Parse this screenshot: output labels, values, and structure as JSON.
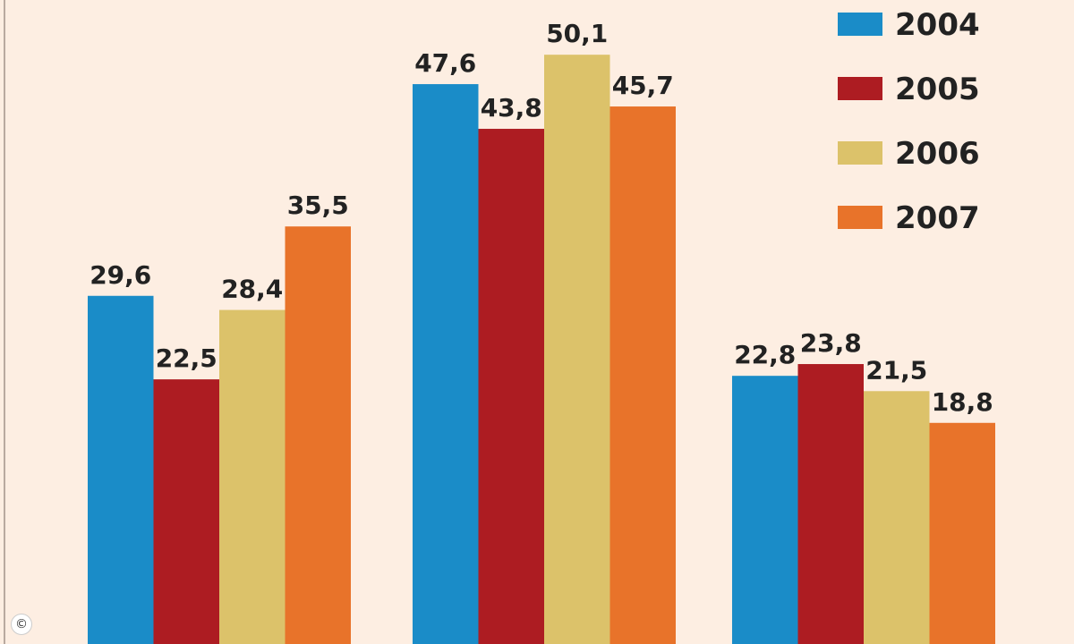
{
  "chart_data": {
    "type": "bar",
    "categories": [
      "",
      "",
      ""
    ],
    "series": [
      {
        "name": "2004",
        "color": "#1a8cc8",
        "values": [
          29.6,
          47.6,
          22.8
        ]
      },
      {
        "name": "2005",
        "color": "#ad1c22",
        "values": [
          22.5,
          43.8,
          23.8
        ]
      },
      {
        "name": "2006",
        "color": "#dcc26a",
        "values": [
          28.4,
          50.1,
          21.5
        ]
      },
      {
        "name": "2007",
        "color": "#e8732a",
        "values": [
          35.5,
          45.7,
          18.8
        ]
      }
    ],
    "data_labels": [
      [
        "29,6",
        "47,6",
        "22,8"
      ],
      [
        "22,5",
        "43,8",
        "23,8"
      ],
      [
        "28,4",
        "50,1",
        "21,5"
      ],
      [
        "35,5",
        "45,7",
        "18,8"
      ]
    ],
    "legend_position": "top-right",
    "grid": false
  },
  "watermark": "©"
}
